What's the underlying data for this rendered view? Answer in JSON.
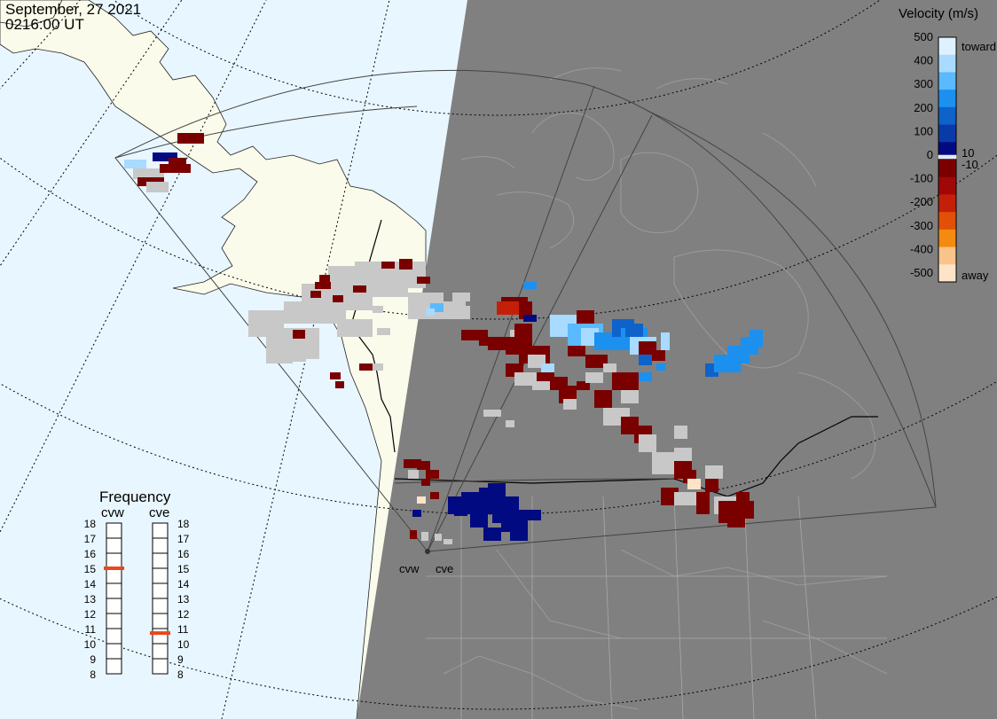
{
  "header": {
    "date": "September, 27 2021",
    "time": "0216:00 UT"
  },
  "colors": {
    "ocean_day": "#e8f6ff",
    "land_day": "#fbfbeb",
    "night": "#808080",
    "ground_scatter": "#c8c8c8",
    "freq_marker": "#e8481e"
  },
  "velocity_scale": {
    "title": "Velocity (m/s)",
    "ticks": [
      "500",
      "400",
      "300",
      "200",
      "100",
      "10",
      "0",
      "-10",
      "-100",
      "-200",
      "-300",
      "-400",
      "-500"
    ],
    "toward_label": "toward",
    "away_label": "away",
    "colors": [
      "#dff1ff",
      "#a8dbff",
      "#5ab9ff",
      "#1b90ef",
      "#0e62c9",
      "#0a3aa8",
      "#020a82",
      "#7a0000",
      "#a00808",
      "#c42008",
      "#e05008",
      "#f48a10",
      "#f9c48a",
      "#fde4c8"
    ]
  },
  "radars": [
    {
      "code": "cvw",
      "frequency_mhz": 15
    },
    {
      "code": "cve",
      "frequency_mhz": 10.7
    }
  ],
  "frequency": {
    "title": "Frequency",
    "ticks": [
      "18",
      "17",
      "16",
      "15",
      "14",
      "13",
      "12",
      "11",
      "10",
      "9",
      "8"
    ]
  }
}
